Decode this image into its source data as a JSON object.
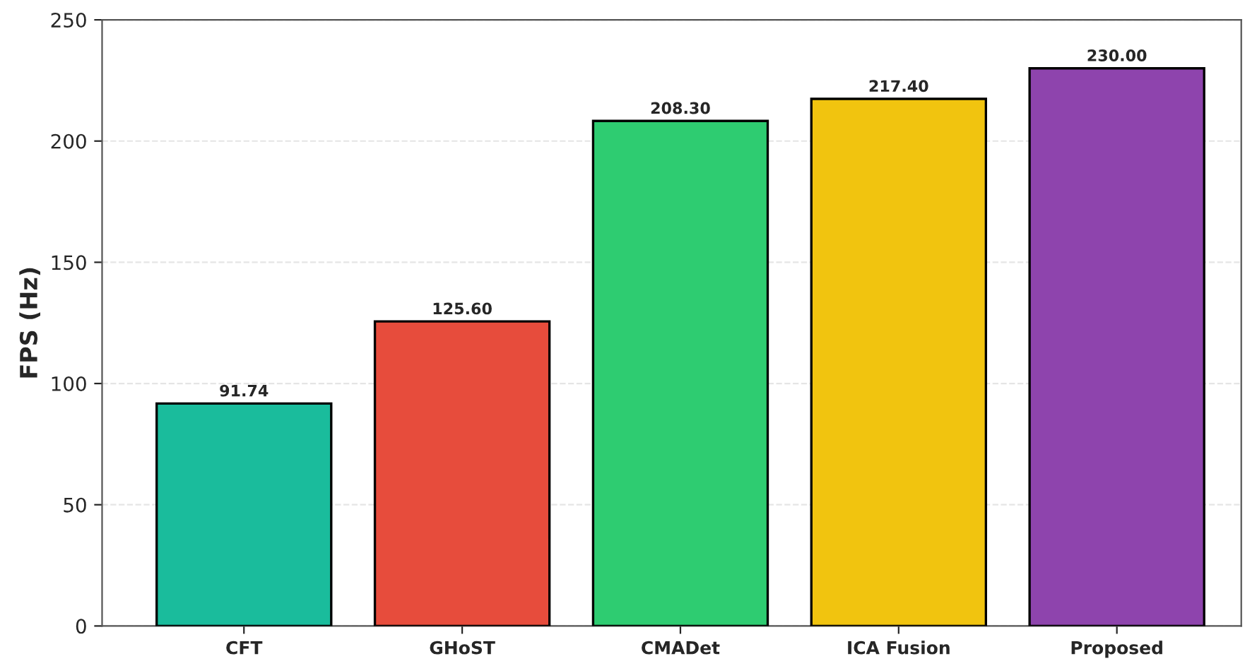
{
  "chart_data": {
    "type": "bar",
    "ylabel": "FPS (Hz)",
    "categories": [
      "CFT",
      "GHoST",
      "CMADet",
      "ICA Fusion",
      "Proposed"
    ],
    "values": [
      91.74,
      125.6,
      208.3,
      217.4,
      230.0
    ],
    "value_labels": [
      "91.74",
      "125.60",
      "208.30",
      "217.40",
      "230.00"
    ],
    "colors": [
      "#1abc9c",
      "#e74c3c",
      "#2ecc71",
      "#f1c40f",
      "#8e44ad"
    ],
    "ylim": [
      0,
      250
    ],
    "yticks": [
      0,
      50,
      100,
      150,
      200,
      250
    ],
    "grid": "y"
  }
}
